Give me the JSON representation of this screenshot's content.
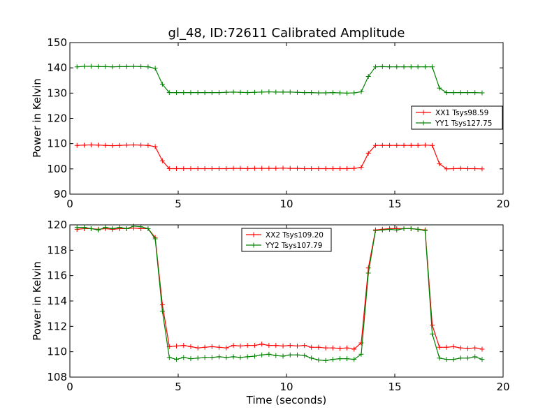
{
  "chart_data": [
    {
      "type": "line",
      "title": "gl_48, ID:72611 Calibrated Amplitude",
      "xlabel": "",
      "ylabel": "Power in Kelvin",
      "xlim": [
        0,
        20
      ],
      "ylim": [
        90,
        150
      ],
      "xticks": [
        0,
        5,
        10,
        15,
        20
      ],
      "yticks": [
        90,
        100,
        110,
        120,
        130,
        140,
        150
      ],
      "grid": false,
      "legend": "center-right",
      "x": [
        0.33,
        0.66,
        0.98,
        1.31,
        1.64,
        1.97,
        2.3,
        2.62,
        2.95,
        3.28,
        3.61,
        3.94,
        4.27,
        4.59,
        4.92,
        5.25,
        5.58,
        5.91,
        6.23,
        6.56,
        6.89,
        7.22,
        7.55,
        7.87,
        8.2,
        8.53,
        8.86,
        9.19,
        9.51,
        9.84,
        10.17,
        10.5,
        10.83,
        11.15,
        11.48,
        11.81,
        12.14,
        12.47,
        12.79,
        13.12,
        13.45,
        13.78,
        14.11,
        14.43,
        14.76,
        15.09,
        15.42,
        15.75,
        16.07,
        16.4,
        16.73,
        17.06,
        17.39,
        17.71,
        18.04,
        18.37,
        18.7,
        19.03
      ],
      "series": [
        {
          "name": "XX1 Tsys98.59",
          "color": "#ff0000",
          "values": [
            109.3,
            109.4,
            109.5,
            109.4,
            109.3,
            109.2,
            109.3,
            109.4,
            109.5,
            109.4,
            109.3,
            108.8,
            103.2,
            100.1,
            100.1,
            100.1,
            100.1,
            100.1,
            100.1,
            100.1,
            100.1,
            100.1,
            100.2,
            100.2,
            100.1,
            100.2,
            100.2,
            100.2,
            100.2,
            100.3,
            100.2,
            100.2,
            100.1,
            100.1,
            100.1,
            100.1,
            100.1,
            100.1,
            100.1,
            100.2,
            100.6,
            106.2,
            109.3,
            109.3,
            109.3,
            109.3,
            109.3,
            109.3,
            109.3,
            109.4,
            109.3,
            102.0,
            100.0,
            100.1,
            100.2,
            100.1,
            100.1,
            100.0
          ]
        },
        {
          "name": "YY1 Tsys127.75",
          "color": "#008000",
          "values": [
            140.4,
            140.6,
            140.6,
            140.5,
            140.5,
            140.4,
            140.5,
            140.5,
            140.6,
            140.5,
            140.4,
            139.8,
            133.5,
            130.2,
            130.2,
            130.2,
            130.2,
            130.2,
            130.2,
            130.2,
            130.2,
            130.3,
            130.4,
            130.3,
            130.2,
            130.3,
            130.4,
            130.5,
            130.4,
            130.4,
            130.4,
            130.3,
            130.2,
            130.2,
            130.1,
            130.1,
            130.2,
            130.1,
            130.0,
            130.1,
            130.5,
            136.6,
            140.4,
            140.5,
            140.4,
            140.4,
            140.4,
            140.4,
            140.4,
            140.4,
            140.4,
            132.0,
            130.2,
            130.2,
            130.2,
            130.2,
            130.2,
            130.1
          ]
        }
      ]
    },
    {
      "type": "line",
      "title": "",
      "xlabel": "Time (seconds)",
      "ylabel": "Power in Kelvin",
      "xlim": [
        0,
        20
      ],
      "ylim": [
        108,
        120
      ],
      "xticks": [
        0,
        5,
        10,
        15,
        20
      ],
      "yticks": [
        108,
        110,
        112,
        114,
        116,
        118,
        120
      ],
      "grid": false,
      "legend": "top-center",
      "x": [
        0.33,
        0.66,
        0.98,
        1.31,
        1.64,
        1.97,
        2.3,
        2.62,
        2.95,
        3.28,
        3.61,
        3.94,
        4.27,
        4.59,
        4.92,
        5.25,
        5.58,
        5.91,
        6.23,
        6.56,
        6.89,
        7.22,
        7.55,
        7.87,
        8.2,
        8.53,
        8.86,
        9.19,
        9.51,
        9.84,
        10.17,
        10.5,
        10.83,
        11.15,
        11.48,
        11.81,
        12.14,
        12.47,
        12.79,
        13.12,
        13.45,
        13.78,
        14.11,
        14.43,
        14.76,
        15.09,
        15.42,
        15.75,
        16.07,
        16.4,
        16.73,
        17.06,
        17.39,
        17.71,
        18.04,
        18.37,
        18.7,
        19.03
      ],
      "series": [
        {
          "name": "XX2 Tsys109.20",
          "color": "#ff0000",
          "values": [
            119.65,
            119.7,
            119.7,
            119.65,
            119.7,
            119.65,
            119.7,
            119.7,
            119.75,
            119.7,
            119.7,
            119.0,
            113.7,
            110.4,
            110.45,
            110.5,
            110.4,
            110.3,
            110.35,
            110.4,
            110.35,
            110.3,
            110.5,
            110.45,
            110.5,
            110.5,
            110.6,
            110.5,
            110.5,
            110.45,
            110.5,
            110.45,
            110.5,
            110.35,
            110.35,
            110.3,
            110.3,
            110.25,
            110.3,
            110.2,
            110.7,
            116.6,
            119.6,
            119.65,
            119.7,
            119.7,
            119.7,
            119.7,
            119.65,
            119.6,
            112.1,
            110.35,
            110.35,
            110.4,
            110.3,
            110.25,
            110.3,
            110.2
          ]
        },
        {
          "name": "YY2 Tsys107.79",
          "color": "#008000",
          "values": [
            119.8,
            119.8,
            119.7,
            119.6,
            119.8,
            119.7,
            119.8,
            119.7,
            119.9,
            119.85,
            119.7,
            118.9,
            113.2,
            109.55,
            109.4,
            109.55,
            109.45,
            109.5,
            109.55,
            109.55,
            109.6,
            109.55,
            109.6,
            109.55,
            109.6,
            109.65,
            109.75,
            109.8,
            109.7,
            109.65,
            109.75,
            109.75,
            109.7,
            109.5,
            109.35,
            109.3,
            109.4,
            109.45,
            109.45,
            109.4,
            109.8,
            116.2,
            119.55,
            119.6,
            119.65,
            119.6,
            119.7,
            119.7,
            119.65,
            119.55,
            111.4,
            109.5,
            109.4,
            109.4,
            109.5,
            109.5,
            109.6,
            109.4
          ]
        }
      ]
    }
  ]
}
